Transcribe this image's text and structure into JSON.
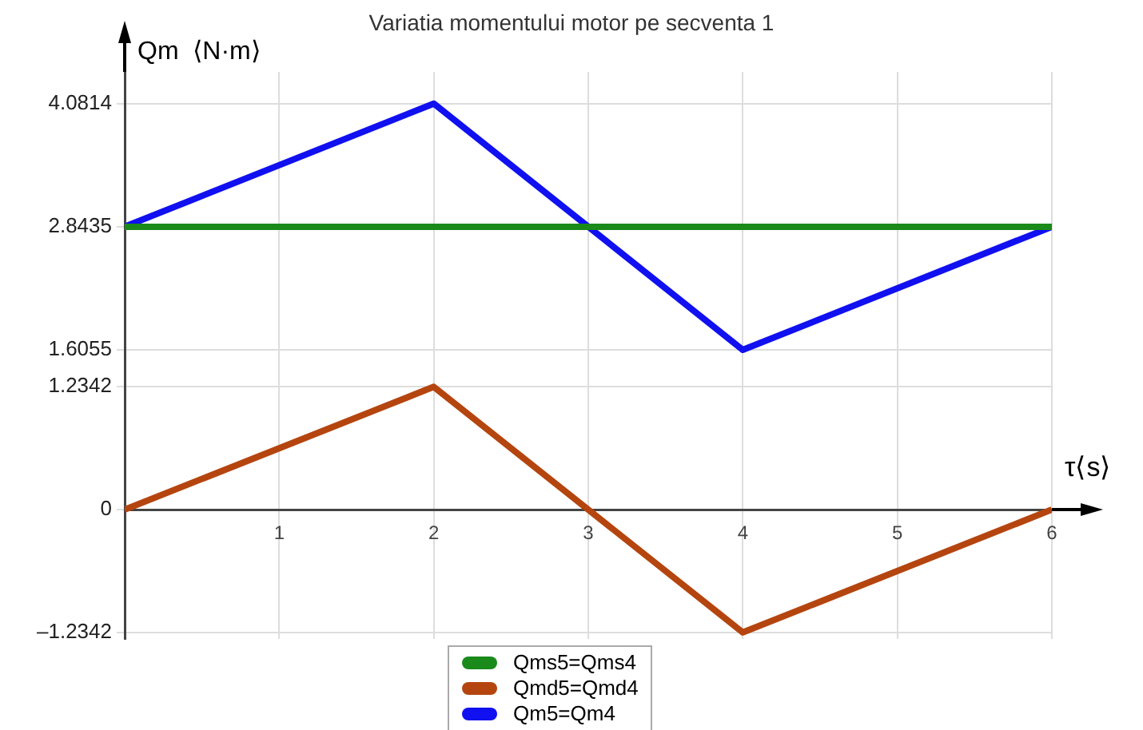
{
  "chart_data": {
    "type": "line",
    "title": "Variatia momentului motor pe secventa 1",
    "xlabel": "τ⟨s⟩",
    "ylabel": "Qm  ⟨N·m⟩",
    "x": [
      0,
      2,
      4,
      6
    ],
    "series": [
      {
        "name": "Qms5=Qms4",
        "color": "#1a8a1a",
        "x": [
          0,
          6
        ],
        "values": [
          2.8435,
          2.8435
        ]
      },
      {
        "name": "Qmd5=Qmd4",
        "color": "#b5450f",
        "values": [
          0,
          1.2342,
          -1.2342,
          0
        ]
      },
      {
        "name": "Qm5=Qm4",
        "color": "#1010f0",
        "values": [
          2.8435,
          4.0814,
          1.6055,
          2.8435
        ]
      }
    ],
    "xlim": [
      0,
      6
    ],
    "xticks": [
      1,
      2,
      3,
      4,
      5,
      6
    ],
    "ylim": [
      -1.3,
      4.4
    ],
    "yticks": [
      {
        "value": -1.2342,
        "label": "–1.2342"
      },
      0,
      1.2342,
      1.6055,
      2.8435,
      4.0814
    ],
    "grid": true,
    "legend": "bottom",
    "marker": "none",
    "line_style": "solid"
  }
}
